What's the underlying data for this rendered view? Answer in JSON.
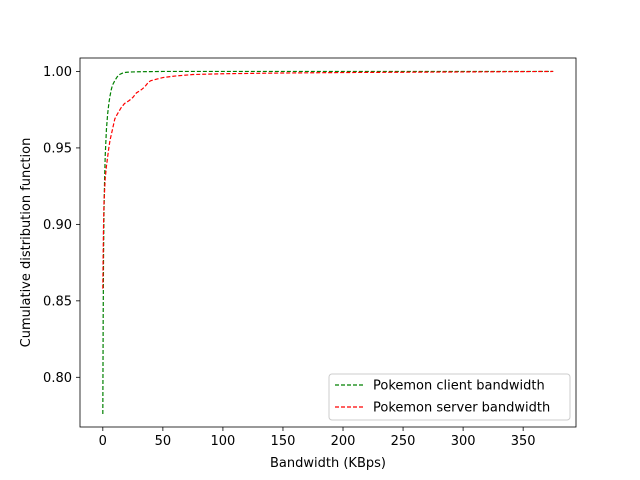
{
  "chart_data": {
    "type": "line",
    "title": "",
    "xlabel": "Bandwidth (KBps)",
    "ylabel": "Cumulative distribution function",
    "xlim": [
      -19,
      394
    ],
    "ylim": [
      0.7675,
      1.0088
    ],
    "xticks": [
      0,
      50,
      100,
      150,
      200,
      250,
      300,
      350
    ],
    "yticks": [
      0.8,
      0.85,
      0.9,
      0.95,
      1.0
    ],
    "xtick_labels": [
      "0",
      "50",
      "100",
      "150",
      "200",
      "250",
      "300",
      "350"
    ],
    "ytick_labels": [
      "0.80",
      "0.85",
      "0.90",
      "0.95",
      "1.00"
    ],
    "grid": false,
    "legend_position": "lower-right",
    "series": [
      {
        "name": "Pokemon client bandwidth",
        "color": "#008000",
        "linestyle": "dashed",
        "x": [
          0,
          0.3,
          0.6,
          1,
          1.5,
          2,
          3,
          4,
          5,
          6,
          7,
          8,
          10,
          12,
          14,
          16,
          18,
          20,
          25,
          30,
          40,
          50,
          75,
          100,
          150,
          200,
          250,
          300,
          350,
          375
        ],
        "y": [
          0.776,
          0.84,
          0.88,
          0.91,
          0.93,
          0.945,
          0.962,
          0.972,
          0.979,
          0.984,
          0.988,
          0.991,
          0.994,
          0.9965,
          0.998,
          0.9988,
          0.9993,
          0.9995,
          0.9997,
          0.9998,
          0.9999,
          1.0,
          1.0,
          1.0,
          1.0,
          1.0,
          1.0,
          1.0,
          1.0,
          1.0
        ]
      },
      {
        "name": "Pokemon server bandwidth",
        "color": "#ff0000",
        "linestyle": "dashed",
        "x": [
          0,
          0.5,
          1,
          2,
          3,
          4,
          5,
          6,
          8,
          10,
          12,
          15,
          18,
          22,
          25,
          28,
          30,
          32,
          35,
          38,
          40,
          45,
          50,
          60,
          75,
          100,
          150,
          200,
          250,
          300,
          350,
          375
        ],
        "y": [
          0.858,
          0.895,
          0.915,
          0.93,
          0.938,
          0.944,
          0.95,
          0.955,
          0.962,
          0.969,
          0.972,
          0.976,
          0.979,
          0.981,
          0.983,
          0.986,
          0.987,
          0.988,
          0.99,
          0.993,
          0.994,
          0.995,
          0.996,
          0.997,
          0.998,
          0.9985,
          0.999,
          0.9993,
          0.9995,
          0.9997,
          0.9999,
          1.0
        ]
      }
    ]
  }
}
